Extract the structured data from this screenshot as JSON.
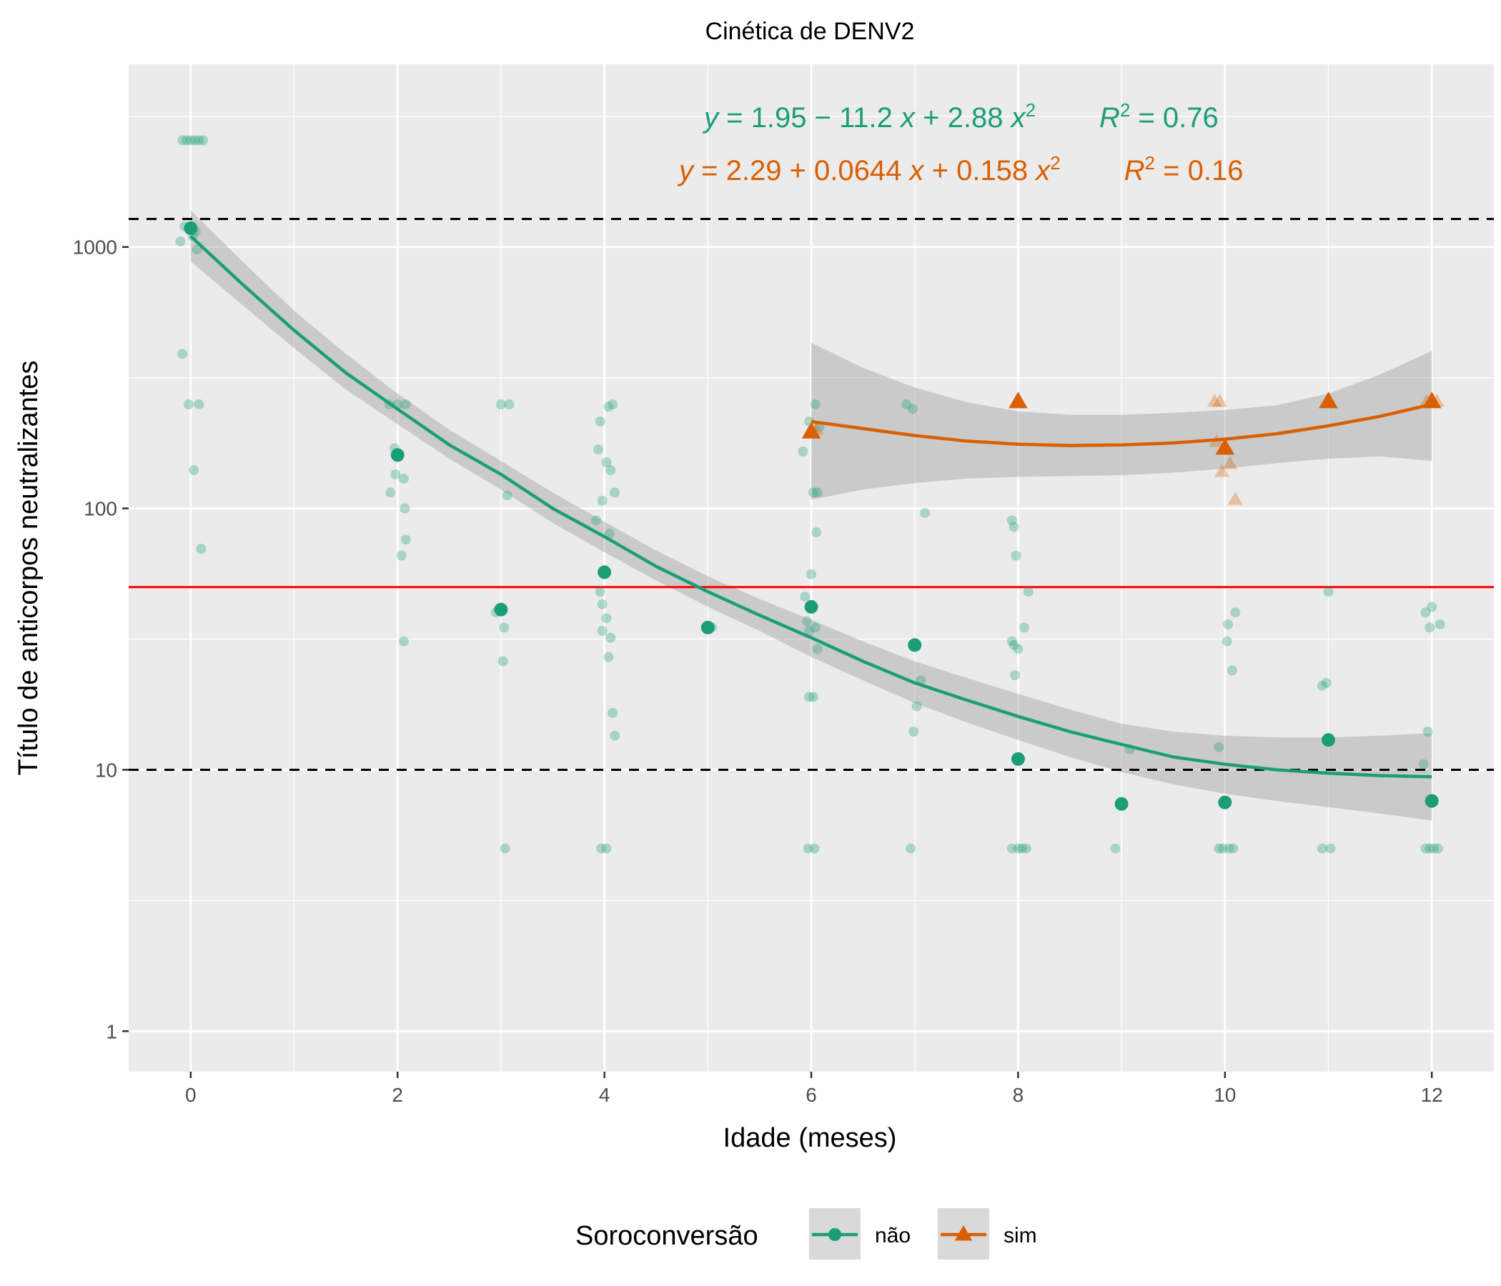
{
  "chart_data": {
    "type": "scatter",
    "title": "Cinética de DENV2",
    "xlabel": "Idade (meses)",
    "ylabel": "Título de anticorpos neutralizantes",
    "xlim": [
      -0.6,
      12.6
    ],
    "ylim": [
      0.7,
      5000
    ],
    "yscale": "log10",
    "x_ticks": [
      0,
      2,
      4,
      6,
      8,
      10,
      12
    ],
    "x_tick_labels": [
      "0",
      "2",
      "4",
      "6",
      "8",
      "10",
      "12"
    ],
    "y_ticks": [
      1,
      10,
      100,
      1000
    ],
    "y_tick_labels": [
      "1",
      "10",
      "100",
      "1000"
    ],
    "grid": true,
    "legend": {
      "title": "Soroconversão",
      "position": "bottom",
      "entries": [
        {
          "label": "não",
          "color": "#1b9e77",
          "shape": "circle"
        },
        {
          "label": "sim",
          "color": "#d95f02",
          "shape": "triangle"
        }
      ]
    },
    "reference_lines": [
      {
        "y": 1280,
        "style": "dashed",
        "color": "#000000"
      },
      {
        "y": 10,
        "style": "dashed",
        "color": "#000000"
      },
      {
        "y": 50,
        "style": "solid",
        "color": "#ff0000"
      }
    ],
    "annotations": [
      {
        "y_sym": "y",
        "eq": " = 1.95 − 11.2 ",
        "x_sym": "x",
        "plus": " + 2.88 ",
        "r_sym": "R",
        "r_val": " = 0.76",
        "color": "#1b9e77",
        "series": "não"
      },
      {
        "y_sym": "y",
        "eq": " = 2.29 + 0.0644 ",
        "x_sym": "x",
        "plus": " + 0.158 ",
        "r_sym": "R",
        "r_val": " = 0.16",
        "color": "#d95f02",
        "series": "sim"
      }
    ],
    "series": [
      {
        "name": "não",
        "color": "#1b9e77",
        "shape": "circle",
        "fit": {
          "x": [
            0,
            0.5,
            1,
            1.5,
            2,
            2.5,
            3,
            3.5,
            4,
            4.5,
            5,
            5.5,
            6,
            6.5,
            7,
            7.5,
            8,
            8.5,
            9,
            9.5,
            10,
            10.5,
            11,
            11.5,
            12
          ],
          "y": [
            1100,
            720,
            480,
            330,
            240,
            175,
            135,
            100,
            78,
            60,
            48,
            39,
            32,
            26,
            21.5,
            18.5,
            16,
            14,
            12.5,
            11.2,
            10.5,
            10,
            9.7,
            9.5,
            9.4
          ],
          "lower": [
            880,
            600,
            410,
            285,
            210,
            155,
            118,
            88,
            68,
            53,
            42,
            34,
            27,
            22,
            18,
            15.2,
            13,
            11.2,
            9.8,
            8.8,
            8.1,
            7.6,
            7.2,
            6.8,
            6.4
          ],
          "upper": [
            1380,
            880,
            570,
            390,
            275,
            200,
            152,
            115,
            89,
            69,
            55,
            45,
            37.5,
            31,
            26,
            22.5,
            19.5,
            17,
            15,
            14,
            13.5,
            13.3,
            13.3,
            13.5,
            13.8
          ]
        },
        "means": [
          {
            "x": 0,
            "y": 1180
          },
          {
            "x": 2,
            "y": 160
          },
          {
            "x": 3,
            "y": 41
          },
          {
            "x": 4,
            "y": 57
          },
          {
            "x": 5,
            "y": 35
          },
          {
            "x": 6,
            "y": 42
          },
          {
            "x": 7,
            "y": 30
          },
          {
            "x": 8,
            "y": 11
          },
          {
            "x": 9,
            "y": 7.4
          },
          {
            "x": 10,
            "y": 7.5
          },
          {
            "x": 11,
            "y": 13
          },
          {
            "x": 12,
            "y": 7.6
          }
        ],
        "points": [
          {
            "x": -0.08,
            "y": 2560
          },
          {
            "x": -0.04,
            "y": 2560
          },
          {
            "x": 0,
            "y": 2560
          },
          {
            "x": 0.04,
            "y": 2560
          },
          {
            "x": 0.08,
            "y": 2560
          },
          {
            "x": 0.12,
            "y": 2560
          },
          {
            "x": -0.06,
            "y": 1200
          },
          {
            "x": 0.05,
            "y": 1150
          },
          {
            "x": -0.1,
            "y": 1050
          },
          {
            "x": 0.02,
            "y": 1100
          },
          {
            "x": 0.06,
            "y": 980
          },
          {
            "x": -0.08,
            "y": 390
          },
          {
            "x": -0.02,
            "y": 250
          },
          {
            "x": 0.08,
            "y": 250
          },
          {
            "x": 0.03,
            "y": 140
          },
          {
            "x": 0.1,
            "y": 70
          },
          {
            "x": 1.92,
            "y": 250
          },
          {
            "x": 2.0,
            "y": 250
          },
          {
            "x": 2.08,
            "y": 250
          },
          {
            "x": 1.97,
            "y": 170
          },
          {
            "x": 1.98,
            "y": 135
          },
          {
            "x": 2.06,
            "y": 130
          },
          {
            "x": 1.93,
            "y": 115
          },
          {
            "x": 2.07,
            "y": 100
          },
          {
            "x": 2.08,
            "y": 76
          },
          {
            "x": 2.04,
            "y": 66
          },
          {
            "x": 2.06,
            "y": 31
          },
          {
            "x": 3.0,
            "y": 250
          },
          {
            "x": 3.08,
            "y": 250
          },
          {
            "x": 3.06,
            "y": 112
          },
          {
            "x": 2.95,
            "y": 40
          },
          {
            "x": 3.03,
            "y": 35
          },
          {
            "x": 3.02,
            "y": 26
          },
          {
            "x": 3.04,
            "y": 5
          },
          {
            "x": 3.96,
            "y": 215
          },
          {
            "x": 4.04,
            "y": 245
          },
          {
            "x": 4.08,
            "y": 250
          },
          {
            "x": 3.94,
            "y": 168
          },
          {
            "x": 4.02,
            "y": 150
          },
          {
            "x": 4.06,
            "y": 140
          },
          {
            "x": 4.1,
            "y": 115
          },
          {
            "x": 3.98,
            "y": 107
          },
          {
            "x": 3.92,
            "y": 90
          },
          {
            "x": 4.05,
            "y": 80
          },
          {
            "x": 3.96,
            "y": 48
          },
          {
            "x": 3.98,
            "y": 43
          },
          {
            "x": 4.02,
            "y": 38
          },
          {
            "x": 3.98,
            "y": 34
          },
          {
            "x": 4.06,
            "y": 32
          },
          {
            "x": 4.04,
            "y": 27
          },
          {
            "x": 4.08,
            "y": 16.5
          },
          {
            "x": 4.1,
            "y": 13.5
          },
          {
            "x": 3.97,
            "y": 5
          },
          {
            "x": 4.02,
            "y": 5
          },
          {
            "x": 5.04,
            "y": 35
          },
          {
            "x": 6.04,
            "y": 250
          },
          {
            "x": 5.98,
            "y": 215
          },
          {
            "x": 6.08,
            "y": 205
          },
          {
            "x": 5.92,
            "y": 165
          },
          {
            "x": 6.02,
            "y": 115
          },
          {
            "x": 6.06,
            "y": 115
          },
          {
            "x": 6.05,
            "y": 81
          },
          {
            "x": 6.0,
            "y": 56
          },
          {
            "x": 5.94,
            "y": 46
          },
          {
            "x": 5.96,
            "y": 37
          },
          {
            "x": 6.04,
            "y": 35
          },
          {
            "x": 5.98,
            "y": 34
          },
          {
            "x": 6.06,
            "y": 29
          },
          {
            "x": 5.98,
            "y": 19
          },
          {
            "x": 6.02,
            "y": 19
          },
          {
            "x": 5.97,
            "y": 5
          },
          {
            "x": 6.03,
            "y": 5
          },
          {
            "x": 6.92,
            "y": 250
          },
          {
            "x": 6.98,
            "y": 240
          },
          {
            "x": 7.1,
            "y": 96
          },
          {
            "x": 7.06,
            "y": 22
          },
          {
            "x": 7.02,
            "y": 17.5
          },
          {
            "x": 6.99,
            "y": 14
          },
          {
            "x": 6.96,
            "y": 5
          },
          {
            "x": 7.94,
            "y": 90
          },
          {
            "x": 7.96,
            "y": 85
          },
          {
            "x": 7.98,
            "y": 66
          },
          {
            "x": 8.1,
            "y": 48
          },
          {
            "x": 8.06,
            "y": 35
          },
          {
            "x": 7.94,
            "y": 31
          },
          {
            "x": 7.96,
            "y": 30
          },
          {
            "x": 8.0,
            "y": 29
          },
          {
            "x": 7.97,
            "y": 23
          },
          {
            "x": 7.94,
            "y": 5
          },
          {
            "x": 8.0,
            "y": 5
          },
          {
            "x": 8.04,
            "y": 5
          },
          {
            "x": 8.08,
            "y": 5
          },
          {
            "x": 9.08,
            "y": 12
          },
          {
            "x": 8.94,
            "y": 5
          },
          {
            "x": 10.1,
            "y": 40
          },
          {
            "x": 10.03,
            "y": 36
          },
          {
            "x": 10.02,
            "y": 31
          },
          {
            "x": 10.07,
            "y": 24
          },
          {
            "x": 9.94,
            "y": 12.2
          },
          {
            "x": 9.94,
            "y": 5
          },
          {
            "x": 9.98,
            "y": 5
          },
          {
            "x": 10.04,
            "y": 5
          },
          {
            "x": 10.08,
            "y": 5
          },
          {
            "x": 10.94,
            "y": 21
          },
          {
            "x": 10.98,
            "y": 21.5
          },
          {
            "x": 11.0,
            "y": 48
          },
          {
            "x": 10.94,
            "y": 5
          },
          {
            "x": 11.02,
            "y": 5
          },
          {
            "x": 11.94,
            "y": 40
          },
          {
            "x": 12.0,
            "y": 42
          },
          {
            "x": 12.08,
            "y": 36
          },
          {
            "x": 11.98,
            "y": 35
          },
          {
            "x": 11.96,
            "y": 14
          },
          {
            "x": 11.92,
            "y": 10.5
          },
          {
            "x": 11.94,
            "y": 5
          },
          {
            "x": 11.98,
            "y": 5
          },
          {
            "x": 12.02,
            "y": 5
          },
          {
            "x": 12.06,
            "y": 5
          }
        ]
      },
      {
        "name": "sim",
        "color": "#d95f02",
        "shape": "triangle",
        "fit": {
          "x": [
            6,
            6.5,
            7,
            7.5,
            8,
            8.5,
            9,
            9.5,
            10,
            10.5,
            11,
            11.5,
            12
          ],
          "y": [
            215,
            202,
            190,
            181,
            176,
            174,
            175,
            178,
            184,
            193,
            207,
            225,
            250
          ],
          "lower": [
            108,
            118,
            125,
            130,
            132,
            133,
            134,
            137,
            142,
            149,
            155,
            158,
            152
          ],
          "upper": [
            430,
            345,
            290,
            255,
            235,
            228,
            228,
            232,
            238,
            248,
            275,
            325,
            400
          ]
        },
        "means": [
          {
            "x": 6,
            "y": 196
          },
          {
            "x": 8,
            "y": 256
          },
          {
            "x": 10,
            "y": 170
          },
          {
            "x": 11,
            "y": 256
          },
          {
            "x": 12,
            "y": 256
          }
        ],
        "points": [
          {
            "x": 9.9,
            "y": 256
          },
          {
            "x": 9.95,
            "y": 256
          },
          {
            "x": 9.92,
            "y": 180
          },
          {
            "x": 10.05,
            "y": 148
          },
          {
            "x": 9.97,
            "y": 138
          },
          {
            "x": 10.1,
            "y": 108
          },
          {
            "x": 12.05,
            "y": 256
          },
          {
            "x": 11.95,
            "y": 256
          },
          {
            "x": 6.05,
            "y": 200
          }
        ]
      }
    ]
  }
}
